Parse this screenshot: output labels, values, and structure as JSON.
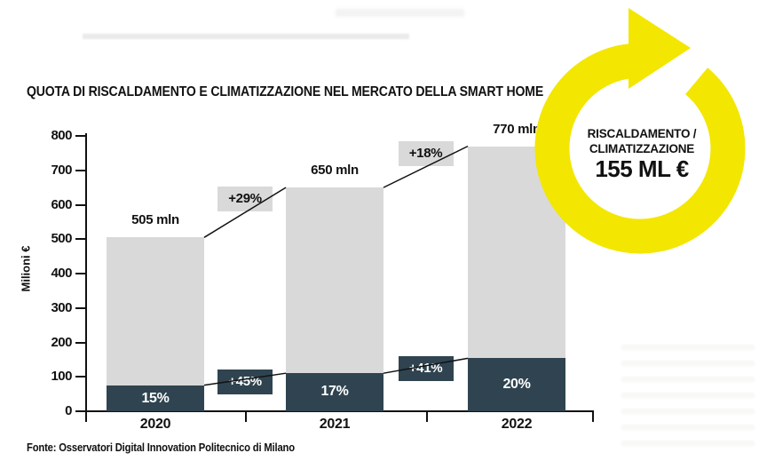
{
  "title": "QUOTA DI RISCALDAMENTO E CLIMATIZZAZIONE NEL MERCATO DELLA SMART HOME",
  "source": "Fonte: Osservatori Digital Innovation Politecnico di Milano",
  "badge": {
    "line1": "RISCALDAMENTO /",
    "line2": "CLIMATIZZAZIONE",
    "value": "155 ML €",
    "icon": "circular-arrow",
    "color": "#F3E600"
  },
  "chart_data": {
    "type": "bar",
    "stacked": true,
    "title": "QUOTA DI RISCALDAMENTO E CLIMATIZZAZIONE NEL MERCATO DELLA SMART HOME",
    "ylabel": "Milioni €",
    "ylim": [
      0,
      800
    ],
    "ytick_step": 100,
    "grid": false,
    "categories": [
      "2020",
      "2021",
      "2022"
    ],
    "totals_mln": [
      505,
      650,
      770
    ],
    "total_labels": [
      "505 mln",
      "650 mln",
      "770 mln"
    ],
    "heating_share_pct": [
      15,
      17,
      20
    ],
    "share_labels": [
      "15%",
      "17%",
      "20%"
    ],
    "total_growth_labels": [
      "+29%",
      "+18%"
    ],
    "heating_growth_labels": [
      "+45%",
      "+41%"
    ],
    "colors": {
      "total": "#D9D9D9",
      "heating": "#2F4450",
      "line": "#111111",
      "text": "#111111"
    }
  }
}
